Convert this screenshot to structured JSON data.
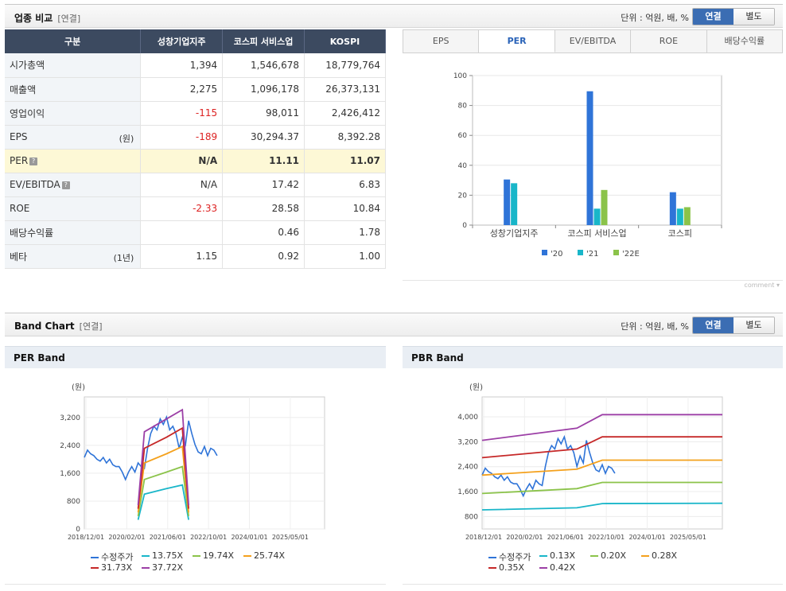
{
  "comparison": {
    "title": "업종 비교",
    "sub": "[연결]",
    "unit": "단위 : 억원, 배, %",
    "toggle": [
      "연결",
      "별도"
    ],
    "headers": [
      "구분",
      "성창기업지주",
      "코스피 서비스업",
      "KOSPI"
    ],
    "rows": [
      {
        "label": "시가총액",
        "unit": "",
        "v": [
          "1,394",
          "1,546,678",
          "18,779,764"
        ],
        "neg": [
          false,
          false,
          false
        ]
      },
      {
        "label": "매출액",
        "unit": "",
        "v": [
          "2,275",
          "1,096,178",
          "26,373,131"
        ],
        "neg": [
          false,
          false,
          false
        ]
      },
      {
        "label": "영업이익",
        "unit": "",
        "v": [
          "-115",
          "98,011",
          "2,426,412"
        ],
        "neg": [
          true,
          false,
          false
        ]
      },
      {
        "label": "EPS",
        "unit": "(원)",
        "v": [
          "-189",
          "30,294.37",
          "8,392.28"
        ],
        "neg": [
          true,
          false,
          false
        ]
      },
      {
        "label": "PER",
        "unit": "",
        "v": [
          "N/A",
          "11.11",
          "11.07"
        ],
        "neg": [
          false,
          false,
          false
        ],
        "highlight": true,
        "help": true
      },
      {
        "label": "EV/EBITDA",
        "unit": "",
        "v": [
          "N/A",
          "17.42",
          "6.83"
        ],
        "neg": [
          false,
          false,
          false
        ],
        "help": true
      },
      {
        "label": "ROE",
        "unit": "",
        "v": [
          "-2.33",
          "28.58",
          "10.84"
        ],
        "neg": [
          true,
          false,
          false
        ]
      },
      {
        "label": "배당수익률",
        "unit": "",
        "v": [
          "",
          "0.46",
          "1.78"
        ],
        "neg": [
          false,
          false,
          false
        ]
      },
      {
        "label": "베타",
        "unit": "(1년)",
        "v": [
          "1.15",
          "0.92",
          "1.00"
        ],
        "neg": [
          false,
          false,
          false
        ]
      }
    ]
  },
  "tabs": [
    "EPS",
    "PER",
    "EV/EBITDA",
    "ROE",
    "배당수익률"
  ],
  "active_tab": "PER",
  "comment_label": "comment",
  "band": {
    "title": "Band Chart",
    "sub": "[연결]",
    "unit": "단위 : 억원, 배, %",
    "toggle": [
      "연결",
      "별도"
    ]
  },
  "chart_data": [
    {
      "type": "bar",
      "title": "",
      "categories": [
        "성창기업지주",
        "코스피 서비스업",
        "코스피"
      ],
      "series": [
        {
          "name": "'20",
          "color": "#2f74d8",
          "values": [
            30.5,
            89.5,
            22
          ]
        },
        {
          "name": "'21",
          "color": "#19b6c9",
          "values": [
            28,
            11,
            11
          ]
        },
        {
          "name": "'22E",
          "color": "#8bc34a",
          "values": [
            null,
            23.5,
            12
          ]
        }
      ],
      "ylim": [
        0,
        100
      ],
      "yticks": [
        0,
        20,
        40,
        60,
        80,
        100
      ],
      "legend": "bottom"
    },
    {
      "type": "line",
      "title": "PER Band",
      "ylabel": "(원)",
      "ylim": [
        0,
        3600
      ],
      "yticks": [
        "0",
        "800",
        "1,600",
        "2,400",
        "3,200"
      ],
      "xlim": [
        2018.9,
        2026.5
      ],
      "xticks": [
        "2018/12/01",
        "2020/02/01",
        "2021/06/01",
        "2022/10/01",
        "2024/01/01",
        "2025/05/01"
      ],
      "series": [
        {
          "name": "수정주가",
          "color": "#2f74d8",
          "x": [
            2018.9,
            2019.0,
            2019.1,
            2019.2,
            2019.3,
            2019.4,
            2019.5,
            2019.6,
            2019.7,
            2019.8,
            2019.9,
            2020.0,
            2020.1,
            2020.2,
            2020.3,
            2020.4,
            2020.5,
            2020.6,
            2020.7,
            2020.8,
            2020.9,
            2021.0,
            2021.1,
            2021.2,
            2021.3,
            2021.4,
            2021.5,
            2021.6,
            2021.7,
            2021.8,
            2021.9,
            2022.0,
            2022.1,
            2022.2,
            2022.3,
            2022.4,
            2022.5,
            2022.6,
            2022.7,
            2022.8,
            2022.9,
            2023.0,
            2023.1
          ],
          "y": [
            1950,
            2150,
            2050,
            2000,
            1900,
            1850,
            1950,
            1800,
            1900,
            1750,
            1700,
            1700,
            1550,
            1350,
            1550,
            1700,
            1550,
            1800,
            1700,
            1650,
            2200,
            2600,
            2800,
            2700,
            3000,
            2850,
            3050,
            2700,
            2800,
            2600,
            2200,
            2500,
            2300,
            2950,
            2600,
            2300,
            2100,
            2050,
            2250,
            2000,
            2200,
            2150,
            2000
          ]
        },
        {
          "name": "13.75X",
          "color": "#19b6c9",
          "x": [
            2020.6,
            2020.8,
            2021.5,
            2022.0,
            2022.2
          ],
          "y": [
            250,
            950,
            1100,
            1200,
            250
          ]
        },
        {
          "name": "19.74X",
          "color": "#8bc34a",
          "x": [
            2020.6,
            2020.8,
            2021.5,
            2022.0,
            2022.2
          ],
          "y": [
            350,
            1350,
            1550,
            1700,
            350
          ]
        },
        {
          "name": "25.74X",
          "color": "#f4a11d",
          "x": [
            2020.6,
            2020.8,
            2021.5,
            2022.0,
            2022.2
          ],
          "y": [
            450,
            1800,
            2050,
            2250,
            450
          ]
        },
        {
          "name": "31.73X",
          "color": "#c62828",
          "x": [
            2020.6,
            2020.8,
            2021.5,
            2022.0,
            2022.2
          ],
          "y": [
            550,
            2200,
            2500,
            2750,
            550
          ]
        },
        {
          "name": "37.72X",
          "color": "#9c3fa6",
          "x": [
            2020.6,
            2020.8,
            2021.5,
            2022.0,
            2022.2
          ],
          "y": [
            650,
            2650,
            3000,
            3250,
            650
          ]
        }
      ],
      "legend": "bottom"
    },
    {
      "type": "line",
      "title": "PBR Band",
      "ylabel": "(원)",
      "ylim": [
        400,
        4200
      ],
      "yticks": [
        "800",
        "1,600",
        "2,400",
        "3,200",
        "4,000"
      ],
      "xlim": [
        2018.9,
        2026.5
      ],
      "xticks": [
        "2018/12/01",
        "2020/02/01",
        "2021/06/01",
        "2022/10/01",
        "2024/01/01",
        "2025/05/01"
      ],
      "series": [
        {
          "name": "수정주가",
          "color": "#2f74d8",
          "x": [
            2018.9,
            2019.0,
            2019.1,
            2019.2,
            2019.3,
            2019.4,
            2019.5,
            2019.6,
            2019.7,
            2019.8,
            2019.9,
            2020.0,
            2020.1,
            2020.2,
            2020.3,
            2020.4,
            2020.5,
            2020.6,
            2020.7,
            2020.8,
            2020.9,
            2021.0,
            2021.1,
            2021.2,
            2021.3,
            2021.4,
            2021.5,
            2021.6,
            2021.7,
            2021.8,
            2021.9,
            2022.0,
            2022.1,
            2022.2,
            2022.3,
            2022.4,
            2022.5,
            2022.6,
            2022.7,
            2022.8,
            2022.9,
            2023.0,
            2023.1
          ],
          "y": [
            1950,
            2150,
            2050,
            2000,
            1900,
            1850,
            1950,
            1800,
            1900,
            1750,
            1700,
            1700,
            1550,
            1350,
            1550,
            1700,
            1550,
            1800,
            1700,
            1650,
            2200,
            2600,
            2800,
            2700,
            3000,
            2850,
            3050,
            2700,
            2800,
            2600,
            2200,
            2500,
            2300,
            2950,
            2600,
            2300,
            2100,
            2050,
            2250,
            2000,
            2200,
            2150,
            2000
          ]
        },
        {
          "name": "0.13X",
          "color": "#19b6c9",
          "x": [
            2018.9,
            2021.9,
            2022.7,
            2026.5
          ],
          "y": [
            950,
            1010,
            1130,
            1140
          ]
        },
        {
          "name": "0.20X",
          "color": "#8bc34a",
          "x": [
            2018.9,
            2021.9,
            2022.7,
            2026.5
          ],
          "y": [
            1420,
            1560,
            1740,
            1740
          ]
        },
        {
          "name": "0.28X",
          "color": "#f4a11d",
          "x": [
            2018.9,
            2021.9,
            2022.7,
            2026.5
          ],
          "y": [
            1950,
            2120,
            2380,
            2380
          ]
        },
        {
          "name": "0.35X",
          "color": "#c62828",
          "x": [
            2018.9,
            2021.9,
            2022.7,
            2026.5
          ],
          "y": [
            2450,
            2700,
            3050,
            3050
          ]
        },
        {
          "name": "0.42X",
          "color": "#9c3fa6",
          "x": [
            2018.9,
            2021.9,
            2022.7,
            2026.5
          ],
          "y": [
            2950,
            3300,
            3690,
            3690
          ]
        }
      ],
      "legend": "bottom"
    }
  ]
}
